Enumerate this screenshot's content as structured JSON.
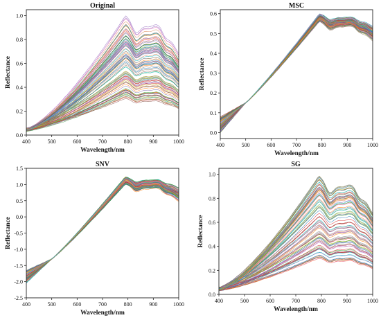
{
  "chart_data": [
    {
      "type": "line",
      "title": "Original",
      "xlabel": "Wavelength/nm",
      "ylabel": "Reflectance",
      "xlim": [
        400,
        1000
      ],
      "ylim": [
        0.0,
        1.05
      ],
      "xticks": [
        400,
        500,
        600,
        700,
        800,
        900,
        1000
      ],
      "yticks": [
        0.0,
        0.2,
        0.4,
        0.6,
        0.8,
        1.0
      ],
      "ytick_labels": [
        "0.0",
        "0.2",
        "0.4",
        "0.6",
        "0.8",
        "1.0"
      ],
      "grid": false,
      "series_count": 90,
      "amplitude_range": [
        0.3,
        1.0
      ],
      "start_value_range": [
        0.03,
        0.06
      ],
      "peak_wavelength": 790,
      "shape": "raw"
    },
    {
      "type": "line",
      "title": "MSC",
      "xlabel": "Wavelength/nm",
      "ylabel": "Reflectance",
      "xlim": [
        400,
        1000
      ],
      "ylim": [
        -0.03,
        0.62
      ],
      "xticks": [
        400,
        500,
        600,
        700,
        800,
        900,
        1000
      ],
      "yticks": [
        0.0,
        0.1,
        0.2,
        0.3,
        0.4,
        0.5,
        0.6
      ],
      "ytick_labels": [
        "0.0",
        "0.1",
        "0.2",
        "0.3",
        "0.4",
        "0.5",
        "0.6"
      ],
      "grid": false,
      "series_count": 90,
      "level_at_400nm_range": [
        0.0,
        0.08
      ],
      "crossover_wavelength": 500,
      "crossover_value": 0.15,
      "peak_wavelength": 790,
      "peak_value": 0.58,
      "shape": "msc"
    },
    {
      "type": "line",
      "title": "SNV",
      "xlabel": "Wavelength/nm",
      "ylabel": "Reflectance",
      "xlim": [
        400,
        1000
      ],
      "ylim": [
        -2.5,
        1.5
      ],
      "xticks": [
        400,
        500,
        600,
        700,
        800,
        900,
        1000
      ],
      "yticks": [
        -2.5,
        -2.0,
        -1.5,
        -1.0,
        -0.5,
        0.0,
        0.5,
        1.0,
        1.5
      ],
      "ytick_labels": [
        "-2.5",
        "-2.0",
        "-1.5",
        "-1.0",
        "-0.5",
        "0.0",
        "0.5",
        "1.0",
        "1.5"
      ],
      "grid": false,
      "series_count": 90,
      "level_at_400nm_range": [
        -2.05,
        -1.65
      ],
      "crossover_wavelength": 500,
      "crossover_value": -1.3,
      "peak_wavelength": 790,
      "peak_value": 1.12,
      "shape": "snv"
    },
    {
      "type": "line",
      "title": "SG",
      "xlabel": "Wavelength/nm",
      "ylabel": "Reflectance",
      "xlim": [
        400,
        1000
      ],
      "ylim": [
        0.0,
        1.05
      ],
      "xticks": [
        400,
        500,
        600,
        700,
        800,
        900,
        1000
      ],
      "yticks": [
        0.0,
        0.2,
        0.4,
        0.6,
        0.8,
        1.0
      ],
      "ytick_labels": [
        "0.0",
        "0.2",
        "0.4",
        "0.6",
        "0.8",
        "1.0"
      ],
      "grid": false,
      "series_count": 90,
      "amplitude_range": [
        0.3,
        1.0
      ],
      "start_value_range": [
        0.03,
        0.06
      ],
      "peak_wavelength": 790,
      "shape": "raw"
    }
  ],
  "colors": {
    "palette": [
      "#1f77b4",
      "#ff7f0e",
      "#2ca02c",
      "#d62728",
      "#9467bd",
      "#8c564b",
      "#e377c2",
      "#7f7f7f",
      "#bcbd22",
      "#17becf",
      "#4c72b0",
      "#dd8452",
      "#55a868",
      "#c44e52",
      "#8172b3",
      "#937860"
    ],
    "axis": "#222222"
  }
}
